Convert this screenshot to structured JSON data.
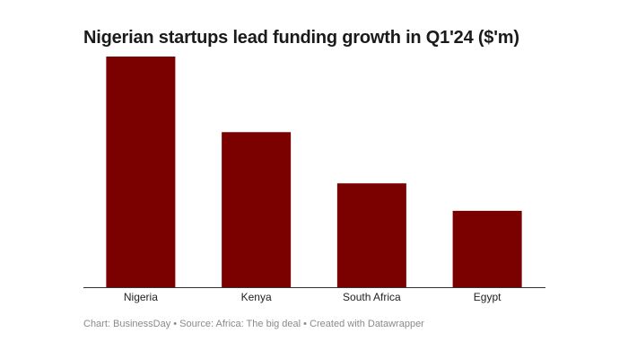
{
  "chart_data": {
    "type": "bar",
    "title": "Nigerian startups lead funding growth in Q1'24 ($'m)",
    "categories": [
      "Nigeria",
      "Kenya",
      "South Africa",
      "Egypt"
    ],
    "values": [
      302,
      203,
      136,
      100
    ],
    "ylim": [
      0,
      302
    ],
    "grid": false,
    "bar_color": "#7b0000",
    "xlabel": "",
    "ylabel": ""
  },
  "footer": "Chart: BusinessDay • Source: Africa: The big deal • Created with Datawrapper"
}
